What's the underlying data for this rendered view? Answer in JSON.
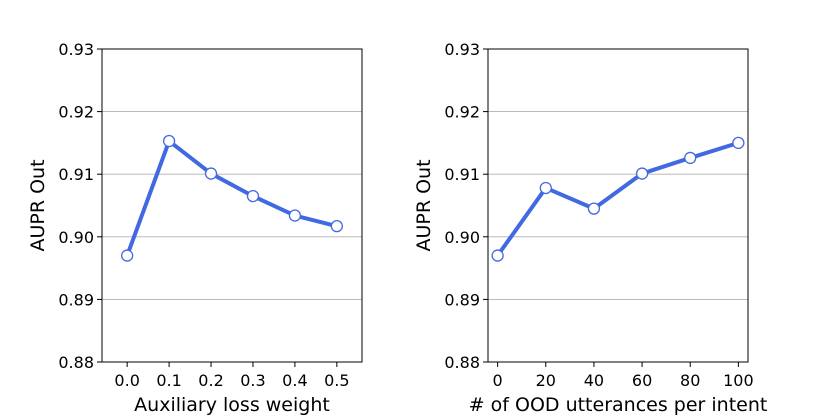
{
  "chart_data": [
    {
      "type": "line",
      "title": "",
      "xlabel": "Auxiliary loss weight",
      "ylabel": "AUPR Out",
      "x": [
        0.0,
        0.1,
        0.2,
        0.3,
        0.4,
        0.5
      ],
      "x_tick_labels": [
        "0.0",
        "0.1",
        "0.2",
        "0.3",
        "0.4",
        "0.5"
      ],
      "series": [
        {
          "name": "AUPR Out",
          "values": [
            0.897,
            0.9153,
            0.9101,
            0.9065,
            0.9034,
            0.9017
          ]
        }
      ],
      "xlim": [
        -0.06,
        0.56
      ],
      "ylim": [
        0.88,
        0.93
      ],
      "y_ticks": [
        0.88,
        0.89,
        0.9,
        0.91,
        0.92,
        0.93
      ],
      "y_tick_labels": [
        "0.88",
        "0.89",
        "0.90",
        "0.91",
        "0.92",
        "0.93"
      ],
      "grid": "horizontal",
      "line_color": "#4169e1",
      "marker_fill": "#ffffff"
    },
    {
      "type": "line",
      "title": "",
      "xlabel": "# of OOD utterances per intent",
      "ylabel": "AUPR Out",
      "x": [
        0,
        20,
        40,
        60,
        80,
        100
      ],
      "x_tick_labels": [
        "0",
        "20",
        "40",
        "60",
        "80",
        "100"
      ],
      "series": [
        {
          "name": "AUPR Out",
          "values": [
            0.897,
            0.9078,
            0.9045,
            0.9101,
            0.9126,
            0.915
          ]
        }
      ],
      "xlim": [
        -4,
        104
      ],
      "ylim": [
        0.88,
        0.93
      ],
      "y_ticks": [
        0.88,
        0.89,
        0.9,
        0.91,
        0.92,
        0.93
      ],
      "y_tick_labels": [
        "0.88",
        "0.89",
        "0.90",
        "0.91",
        "0.92",
        "0.93"
      ],
      "grid": "horizontal",
      "line_color": "#4169e1",
      "marker_fill": "#ffffff"
    }
  ]
}
